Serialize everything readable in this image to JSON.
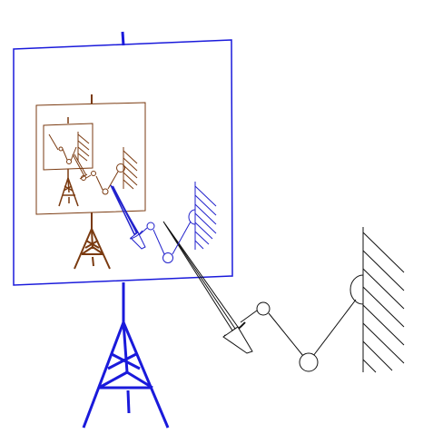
{
  "diagram": {
    "description_text": "",
    "colors": {
      "background": "#ffffff",
      "outer_easel": "#1a1adb",
      "middle_easel": "#7a3a10",
      "inner_easel": "#7a3a10",
      "arm_outer": "#111111",
      "arm_middle": "#2222cc",
      "arm_inner": "#7a3a10"
    },
    "icons": {
      "easel": "easel-icon",
      "wall": "hatched-wall-icon",
      "arm": "jointed-arm-icon",
      "sword": "sword-icon"
    }
  }
}
